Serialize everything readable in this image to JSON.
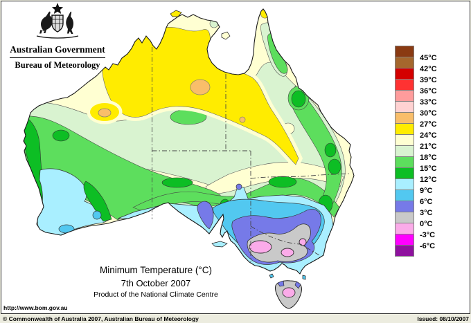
{
  "header": {
    "government": "Australian Government",
    "agency": "Bureau of Meteorology"
  },
  "map": {
    "region": "Australia",
    "title": "Minimum Temperature (°C)",
    "date": "7th October 2007",
    "product": "Product of the National Climate Centre"
  },
  "legend": {
    "unit": "°C",
    "bands": [
      {
        "color": "darkBrown",
        "label_below": "45°C"
      },
      {
        "color": "brown",
        "label_below": "42°C"
      },
      {
        "color": "darkRed",
        "label_below": "39°C"
      },
      {
        "color": "red",
        "label_below": "36°C"
      },
      {
        "color": "salmon",
        "label_below": "33°C"
      },
      {
        "color": "palePink",
        "label_below": "30°C"
      },
      {
        "color": "orange",
        "label_below": "27°C"
      },
      {
        "color": "yellow",
        "label_below": "24°C"
      },
      {
        "color": "paleYellow",
        "label_below": "21°C"
      },
      {
        "color": "paleGreen",
        "label_below": "18°C"
      },
      {
        "color": "green",
        "label_below": "15°C"
      },
      {
        "color": "darkGreen",
        "label_below": "12°C"
      },
      {
        "color": "paleCyan",
        "label_below": "9°C"
      },
      {
        "color": "cyan",
        "label_below": "6°C"
      },
      {
        "color": "blue",
        "label_below": "3°C"
      },
      {
        "color": "grey",
        "label_below": "0°C"
      },
      {
        "color": "pink",
        "label_below": "-3°C"
      },
      {
        "color": "magenta",
        "label_below": "-6°C"
      },
      {
        "color": "purple",
        "label_below": null
      }
    ]
  },
  "palette": {
    "darkBrown": "#8a3a12",
    "brown": "#a5672d",
    "darkRed": "#d40000",
    "red": "#ff3232",
    "salmon": "#ff9c9c",
    "palePink": "#ffd2d2",
    "orange": "#f9be6a",
    "yellow": "#ffec00",
    "paleYellow": "#ffffd2",
    "paleGreen": "#d9f3d0",
    "green": "#5dde5d",
    "darkGreen": "#0dbe24",
    "paleCyan": "#a9efff",
    "cyan": "#52c8f0",
    "blue": "#767ae8",
    "grey": "#c9c9c9",
    "pink": "#fbabe9",
    "magenta": "#ff00ff",
    "purple": "#8e119e"
  },
  "links": {
    "url": "http://www.bom.gov.au"
  },
  "footer": {
    "copyright": "© Commonwealth of Australia 2007, Australian Bureau of Meteorology",
    "issued": "Issued: 08/10/2007"
  }
}
